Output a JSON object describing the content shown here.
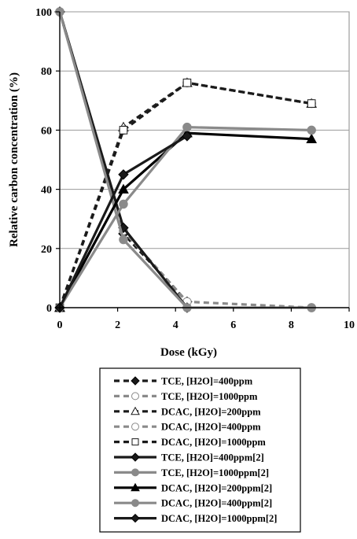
{
  "chart_data": {
    "type": "line",
    "xlabel": "Dose (kGy)",
    "ylabel": "Relative carbon concentration (%)",
    "xlim": [
      0,
      10
    ],
    "ylim": [
      0,
      100
    ],
    "xticks": [
      0,
      2,
      4,
      6,
      8,
      10
    ],
    "yticks": [
      0,
      20,
      40,
      60,
      80,
      100
    ],
    "grid": "horizontal",
    "legend_position": "bottom",
    "series": [
      {
        "name": "TCE, [H2O]=400ppm",
        "color": "#1a1a1a",
        "dash": "dashed",
        "marker": "diamond",
        "x": [
          0,
          2.2,
          4.4
        ],
        "y": [
          100,
          25,
          2
        ]
      },
      {
        "name": "TCE, [H2O]=1000ppm",
        "color": "#8a8a8a",
        "dash": "dashed",
        "marker": "circle",
        "x": [
          0,
          2.2,
          4.4,
          8.7
        ],
        "y": [
          100,
          26,
          2,
          0
        ]
      },
      {
        "name": "DCAC, [H2O]=200ppm",
        "color": "#1a1a1a",
        "dash": "dashed",
        "marker": "triangle",
        "x": [
          0,
          2.2,
          4.4,
          8.7
        ],
        "y": [
          0,
          61,
          76,
          69
        ]
      },
      {
        "name": "DCAC, [H2O]=400ppm",
        "color": "#8a8a8a",
        "dash": "dashed",
        "marker": "circle",
        "x": [
          0,
          2.2,
          4.4,
          8.7
        ],
        "y": [
          0,
          60,
          76,
          69
        ]
      },
      {
        "name": "DCAC, [H2O]=1000ppm",
        "color": "#1a1a1a",
        "dash": "dashed",
        "marker": "square",
        "x": [
          0,
          2.2,
          4.4,
          8.7
        ],
        "y": [
          0,
          60,
          76,
          69
        ]
      },
      {
        "name": "TCE, [H2O]=400ppm[2]",
        "color": "#1a1a1a",
        "dash": "solid",
        "marker": "diamond",
        "x": [
          0,
          2.2,
          4.4
        ],
        "y": [
          100,
          27,
          0
        ]
      },
      {
        "name": "TCE, [H2O]=1000ppm[2]",
        "color": "#8a8a8a",
        "dash": "solid",
        "marker": "circle",
        "x": [
          0,
          2.2,
          4.4,
          8.7
        ],
        "y": [
          100,
          23,
          0,
          0
        ]
      },
      {
        "name": "DCAC, [H2O]=200ppm[2]",
        "color": "#000000",
        "dash": "solid",
        "marker": "triangle",
        "x": [
          0,
          2.2,
          4.4,
          8.7
        ],
        "y": [
          0,
          40,
          59,
          57
        ]
      },
      {
        "name": "DCAC, [H2O]=400ppm[2]",
        "color": "#8a8a8a",
        "dash": "solid",
        "marker": "circle",
        "x": [
          0,
          2.2,
          4.4,
          8.7
        ],
        "y": [
          0,
          35,
          61,
          60
        ]
      },
      {
        "name": "DCAC, [H2O]=1000ppm[2]",
        "color": "#1a1a1a",
        "dash": "solid",
        "marker": "diamond",
        "x": [
          0,
          2.2,
          4.4
        ],
        "y": [
          0,
          45,
          58
        ]
      }
    ]
  }
}
